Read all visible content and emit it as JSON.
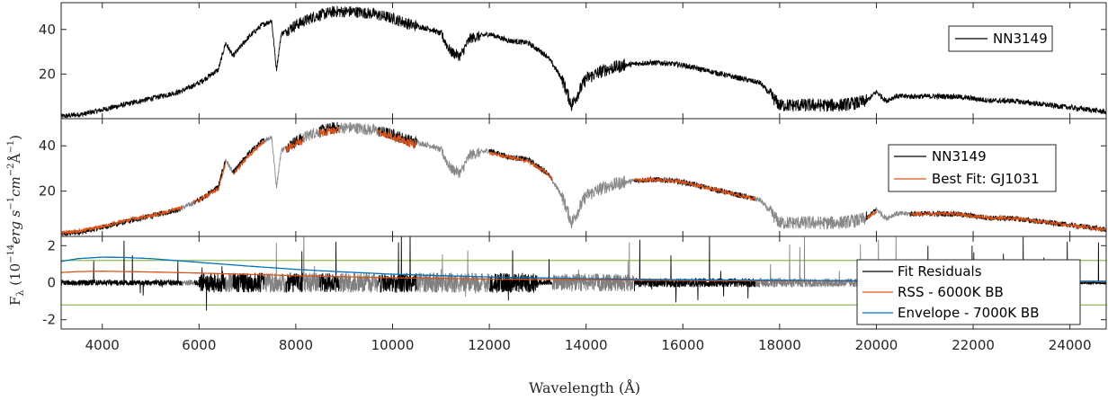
{
  "chart_data": [
    {
      "type": "line",
      "panel": "top",
      "xlim": [
        3150,
        24750
      ],
      "ylim": [
        0,
        52
      ],
      "yticks": [
        20,
        40
      ],
      "grid": false,
      "legend_placement": "top-right",
      "series": [
        {
          "name": "NN3149",
          "color": "#000000",
          "x": [
            3150,
            3600,
            4000,
            4400,
            4800,
            5200,
            5600,
            6000,
            6400,
            6550,
            6700,
            7000,
            7300,
            7500,
            7600,
            7700,
            8000,
            8400,
            8800,
            9200,
            9600,
            10000,
            10400,
            10800,
            11000,
            11200,
            11400,
            11600,
            12000,
            12400,
            12800,
            13200,
            13500,
            13700,
            14000,
            14400,
            14800,
            15200,
            15600,
            16000,
            16400,
            16800,
            17200,
            17600,
            18000,
            18400,
            18800,
            19200,
            19600,
            19800,
            20000,
            20200,
            20400,
            20800,
            21200,
            21600,
            22000,
            22400,
            22800,
            23200,
            23600,
            24000,
            24400,
            24750
          ],
          "y": [
            1,
            2,
            4,
            6,
            8,
            10,
            12,
            16,
            22,
            34,
            28,
            36,
            42,
            44,
            22,
            38,
            42,
            46,
            48,
            48,
            47,
            45,
            42,
            40,
            38,
            30,
            28,
            36,
            38,
            35,
            34,
            28,
            18,
            6,
            18,
            22,
            24,
            25,
            25,
            24,
            22,
            20,
            18,
            16,
            6,
            6,
            6,
            6,
            7,
            8,
            12,
            8,
            10,
            10,
            10,
            10,
            9,
            8,
            8,
            7,
            6,
            5,
            4,
            3
          ]
        }
      ]
    },
    {
      "type": "line",
      "panel": "middle",
      "xlim": [
        3150,
        24750
      ],
      "ylim": [
        0,
        52
      ],
      "yticks": [
        20,
        40
      ],
      "grid": false,
      "legend_placement": "top-right",
      "series": [
        {
          "name": "NN3149",
          "color": "#000000",
          "x": [
            3150,
            3600,
            4000,
            4400,
            4800,
            5200,
            5600,
            6000,
            6400,
            6550,
            6700,
            7000,
            7300,
            7500,
            7600,
            7700,
            8000,
            8400,
            8800,
            9200,
            9600,
            10000,
            10400,
            10800,
            11000,
            11200,
            11400,
            11600,
            12000,
            12400,
            12800,
            13200,
            13500,
            13700,
            14000,
            14400,
            14800,
            15200,
            15600,
            16000,
            16400,
            16800,
            17200,
            17600,
            18000,
            18400,
            18800,
            19200,
            19600,
            19800,
            20000,
            20200,
            20400,
            20800,
            21200,
            21600,
            22000,
            22400,
            22800,
            23200,
            23600,
            24000,
            24400,
            24750
          ],
          "y": [
            1,
            2,
            4,
            6,
            8,
            10,
            12,
            16,
            22,
            34,
            28,
            36,
            42,
            44,
            22,
            38,
            42,
            46,
            48,
            48,
            47,
            45,
            42,
            40,
            38,
            30,
            28,
            36,
            38,
            35,
            34,
            28,
            18,
            6,
            18,
            22,
            24,
            25,
            25,
            24,
            22,
            20,
            18,
            16,
            6,
            6,
            6,
            6,
            7,
            8,
            12,
            8,
            10,
            10,
            10,
            10,
            9,
            8,
            8,
            7,
            6,
            5,
            4,
            3
          ]
        },
        {
          "name": "Best Fit: GJ1031",
          "color": "#d95319",
          "x": [
            3150,
            3600,
            4000,
            4400,
            4800,
            5200,
            5600,
            6000,
            6400,
            6550,
            6700,
            7000,
            7300,
            7500,
            7600,
            7700,
            8000,
            8400,
            8800,
            9200,
            9600,
            10000,
            10400,
            10800,
            11000,
            11200,
            11400,
            11600,
            12000,
            12400,
            12800,
            13200,
            13500,
            13700,
            14000,
            14400,
            14800,
            15200,
            15600,
            16000,
            16400,
            16800,
            17200,
            17600,
            18000,
            18400,
            18800,
            19200,
            19600,
            19800,
            20000,
            20200,
            20400,
            20800,
            21200,
            21600,
            22000,
            22400,
            22800,
            23200,
            23600,
            24000,
            24400,
            24750
          ],
          "y": [
            1.5,
            2.5,
            4.5,
            6.5,
            8.5,
            10,
            12.5,
            16,
            21,
            32,
            27,
            35,
            41,
            43,
            23,
            37,
            41,
            45,
            47,
            48,
            47,
            44,
            41,
            39,
            37,
            31,
            29,
            35,
            37,
            35,
            33,
            28,
            19,
            8,
            18,
            22,
            24,
            25,
            25,
            24,
            22,
            20,
            18,
            16,
            7,
            7,
            6,
            6,
            7,
            8,
            11,
            8,
            10,
            10,
            10,
            10,
            9,
            8,
            8,
            7,
            6,
            5,
            4,
            3
          ]
        }
      ]
    },
    {
      "type": "line",
      "panel": "bottom",
      "xlim": [
        3150,
        24750
      ],
      "ylim": [
        -2.5,
        2.5
      ],
      "yticks": [
        -2,
        0,
        2
      ],
      "xticks": [
        4000,
        6000,
        8000,
        10000,
        12000,
        14000,
        16000,
        18000,
        20000,
        22000,
        24000
      ],
      "xlabel": "Wavelength (Å)",
      "ylabel": "F_λ (10^-14 erg s^-1 cm^-2 Å^-1)",
      "grid": false,
      "legend_placement": "right",
      "reference_lines": [
        1.2,
        -1.2
      ],
      "reference_line_color": "#77ac30",
      "series": [
        {
          "name": "Fit Residuals",
          "color": "#000000",
          "x": [
            3150,
            3600,
            4000,
            4400,
            4800,
            5200,
            5600,
            6000,
            6400,
            6800,
            7200,
            7600,
            8000,
            8400,
            8800,
            9200,
            9600,
            10000,
            10400,
            10800,
            11200,
            11600,
            12000,
            12400,
            12800,
            13200,
            13600,
            14000,
            14400,
            14800,
            15200,
            15600,
            16000,
            16400,
            16800,
            17200,
            17600,
            18000,
            18400,
            18800,
            19200,
            19600,
            20000,
            21000,
            22000,
            23000,
            24000,
            24750
          ],
          "y": [
            0.1,
            0.2,
            0.3,
            0.1,
            0.2,
            0.3,
            0,
            0.2,
            0.1,
            -0.4,
            0.6,
            -0.8,
            0.6,
            -0.4,
            0.8,
            -0.6,
            0.4,
            -0.8,
            0.4,
            -0.4,
            0.6,
            0.2,
            0.4,
            0.2,
            0.4,
            0.2,
            -0.6,
            0.4,
            -0.6,
            0.4,
            0.2,
            0.3,
            0.2,
            0.2,
            0.3,
            0.2,
            0.3,
            0.3,
            0.2,
            0.2,
            0.2,
            0.1,
            0.1,
            0.1,
            0.1,
            0.1,
            0.1,
            0.1
          ]
        },
        {
          "name": "RSS - 6000K BB",
          "color": "#d95319",
          "x": [
            3150,
            3500,
            4000,
            4500,
            5000,
            6000,
            7000,
            8000,
            9000,
            10000,
            11000,
            12000,
            14000,
            16000,
            18000,
            20000,
            22000,
            24750
          ],
          "y": [
            0.55,
            0.6,
            0.62,
            0.6,
            0.58,
            0.52,
            0.45,
            0.38,
            0.32,
            0.27,
            0.23,
            0.2,
            0.15,
            0.12,
            0.1,
            0.08,
            0.07,
            0.06
          ]
        },
        {
          "name": "Envelope - 7000K BB",
          "color": "#0072bd",
          "x": [
            3150,
            3500,
            4000,
            4500,
            5000,
            5500,
            6000,
            7000,
            8000,
            9000,
            10000,
            11000,
            12000,
            13000,
            14000,
            16000,
            18000,
            20000,
            22000,
            24750
          ],
          "y": [
            1.15,
            1.3,
            1.38,
            1.36,
            1.3,
            1.2,
            1.1,
            0.9,
            0.72,
            0.58,
            0.46,
            0.38,
            0.31,
            0.26,
            0.22,
            0.16,
            0.13,
            0.1,
            0.09,
            0.08
          ]
        }
      ]
    }
  ],
  "colors": {
    "residual_gray": "#808080",
    "spectrum_gray": "#888888",
    "axis": "#262626"
  }
}
